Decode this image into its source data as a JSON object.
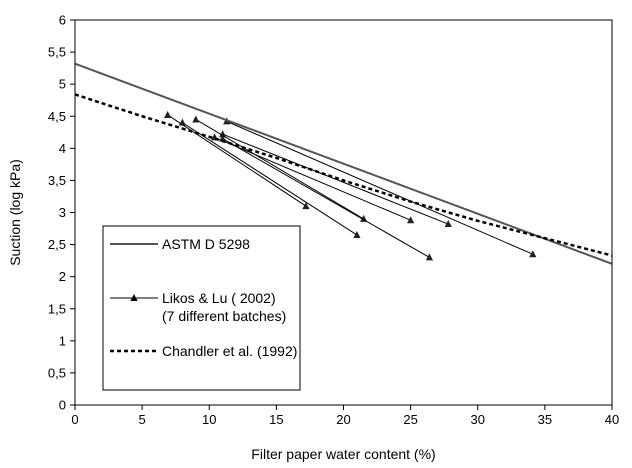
{
  "chart_data": {
    "type": "line",
    "xlabel": "Filter paper  water content (%)",
    "ylabel": "Suction (log kPa)",
    "xlim": [
      0,
      40
    ],
    "ylim": [
      0,
      6
    ],
    "x_ticks": [
      "0",
      "5",
      "10",
      "15",
      "20",
      "25",
      "30",
      "35",
      "40"
    ],
    "y_ticks": [
      "0",
      "0,5",
      "1",
      "1,5",
      "2",
      "2,5",
      "3",
      "3,5",
      "4",
      "4,5",
      "5",
      "5,5",
      "6"
    ],
    "grid": false,
    "legend_position": "bottom-left",
    "series": [
      {
        "name": "ASTM D 5298",
        "style": "solid",
        "color": "#555555",
        "points": [
          [
            0,
            5.32
          ],
          [
            40,
            2.2
          ]
        ]
      },
      {
        "name": "Likos & Lu ( 2002)",
        "name_line2": "(7 different batches)",
        "style": "solid-triangle-markers",
        "color": "#000000",
        "batches": [
          [
            [
              11.3,
              4.42
            ],
            [
              34.1,
              2.35
            ]
          ],
          [
            [
              11.0,
              4.22
            ],
            [
              27.8,
              2.82
            ]
          ],
          [
            [
              10.4,
              4.17
            ],
            [
              25.0,
              2.88
            ]
          ],
          [
            [
              9.0,
              4.45
            ],
            [
              21.5,
              2.9
            ]
          ],
          [
            [
              11.0,
              4.15
            ],
            [
              26.4,
              2.3
            ]
          ],
          [
            [
              8.0,
              4.4
            ],
            [
              21.0,
              2.65
            ]
          ],
          [
            [
              6.9,
              4.52
            ],
            [
              17.2,
              3.1
            ]
          ]
        ]
      },
      {
        "name": "Chandler et al. (1992)",
        "style": "dashed",
        "color": "#000000",
        "points": [
          [
            0,
            4.84
          ],
          [
            5,
            4.5
          ],
          [
            10,
            4.18
          ],
          [
            15,
            3.85
          ],
          [
            20,
            3.5
          ],
          [
            25,
            3.17
          ],
          [
            30,
            2.87
          ],
          [
            35,
            2.6
          ],
          [
            40,
            2.33
          ]
        ]
      }
    ]
  }
}
